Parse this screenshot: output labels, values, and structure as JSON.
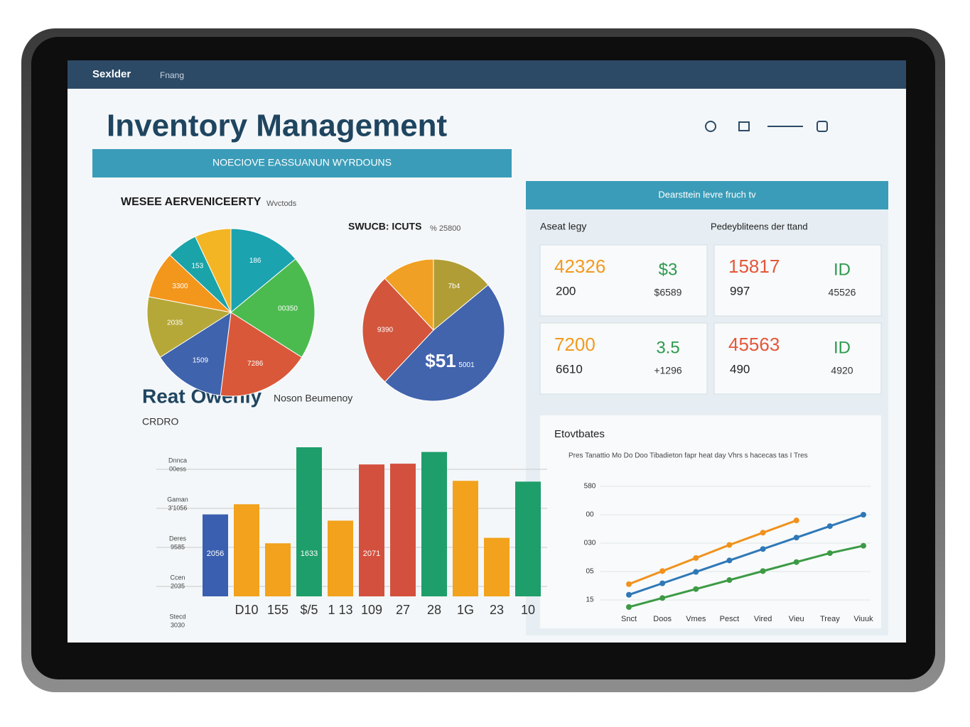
{
  "nav": {
    "brand": "Sexlder",
    "item": "Fnang"
  },
  "title": "Inventory Management",
  "left_panel": {
    "banner": "NOECIOVE EASSUANUN WYRDOUNS",
    "pies": [
      {
        "type": "pie",
        "title": "WESEE AERVENICEERTY",
        "subtitle": "Wvctods",
        "slices": [
          {
            "label": "186",
            "value": 14,
            "color": "#1ba3b0"
          },
          {
            "label": "00350",
            "value": 20,
            "color": "#4cbb4f"
          },
          {
            "label": "7286",
            "value": 18,
            "color": "#d9583a"
          },
          {
            "label": "1509",
            "value": 14,
            "color": "#3f63ad"
          },
          {
            "label": "2035",
            "value": 12,
            "color": "#b5a838"
          },
          {
            "label": "3300",
            "value": 9,
            "color": "#f3961c"
          },
          {
            "label": "153",
            "value": 6,
            "color": "#1aa3a8"
          },
          {
            "label": null,
            "value": 7,
            "color": "#f4b524"
          }
        ]
      },
      {
        "type": "pie",
        "title": "SWUCB: ICUTS",
        "subtitle": "% 25800",
        "center_label": "$51",
        "slices": [
          {
            "label": "7b4",
            "value": 14,
            "color": "#b09d35"
          },
          {
            "label": "5001",
            "value": 48,
            "color": "#4264ad"
          },
          {
            "label": "9390",
            "value": 26,
            "color": "#d2553c"
          },
          {
            "label": null,
            "value": 12,
            "color": "#f0a024"
          }
        ]
      }
    ],
    "bar_chart": {
      "type": "bar",
      "title": "Reat Owenly",
      "subtitle": "Noson Beumenoy",
      "label": "CRDRO",
      "y_labels": [
        [
          "Dnnca",
          "00ess"
        ],
        [
          "Gaman",
          "3'1056"
        ],
        [
          "Deres",
          "9585"
        ],
        [
          "Ccen",
          "2035"
        ],
        [
          "Stecd",
          "3030"
        ]
      ],
      "categories": [
        null,
        "D10",
        "155",
        "$/5",
        "1 13",
        "109",
        "27",
        "28",
        "1G",
        "23",
        "10"
      ],
      "values": [
        105,
        118,
        68,
        191,
        97,
        169,
        170,
        185,
        148,
        75,
        147
      ],
      "colors": [
        "#3a5fb0",
        "#f2a21c",
        "#f2a21c",
        "#1e9e6a",
        "#f2a21c",
        "#d4503e",
        "#d4503e",
        "#1e9e6a",
        "#f2a21c",
        "#f2a21c",
        "#1e9e6a"
      ],
      "bar_labels": [
        {
          "index": 0,
          "text": "2056"
        },
        {
          "index": 3,
          "text": "1633"
        },
        {
          "index": 5,
          "text": "2071"
        }
      ]
    }
  },
  "right_panel": {
    "banner": "Dearsttein levre fruch tv",
    "left_caption": "Aseat legy",
    "right_caption": "Pedeybliteens der ttand",
    "kpis": [
      {
        "main": "42326",
        "main_color": "#f29a1e",
        "sub": "200",
        "side": "$3",
        "side_color": "#2e9a4e",
        "side_sub": "$6589"
      },
      {
        "main": "15817",
        "main_color": "#e4573a",
        "sub": "997",
        "side": "ID",
        "side_color": "#2e9a4e",
        "side_sub": "45526"
      },
      {
        "main": "7200",
        "main_color": "#f29a1e",
        "sub": "6610",
        "side": "3.5",
        "side_color": "#2e9a4e",
        "side_sub": "+1296"
      },
      {
        "main": "45563",
        "main_color": "#e4573a",
        "sub": "490",
        "side": "ID",
        "side_color": "#2e9a4e",
        "side_sub": "4920"
      }
    ],
    "line_chart": {
      "type": "line",
      "title": "Etovtbates",
      "subtitle": "Pres Tanattio Mo Do Doo Tibadieton fapr heat day Vhrs s hacecas tas I Tres",
      "y_labels": [
        "580",
        "00",
        "030",
        "05",
        "15"
      ],
      "categories": [
        "Snct",
        "Doos",
        "Vmes",
        "Pesct",
        "Vired",
        "Vieu",
        "Treay",
        "Viuuk"
      ],
      "series": [
        {
          "color": "#f0921c",
          "values": [
            40,
            56,
            72,
            88,
            103,
            118,
            null,
            null
          ]
        },
        {
          "color": "#2f78b8",
          "values": [
            27,
            41,
            55,
            69,
            83,
            97,
            111,
            125
          ]
        },
        {
          "color": "#3c9a45",
          "values": [
            12,
            23,
            34,
            45,
            56,
            67,
            78,
            87
          ]
        }
      ]
    }
  }
}
